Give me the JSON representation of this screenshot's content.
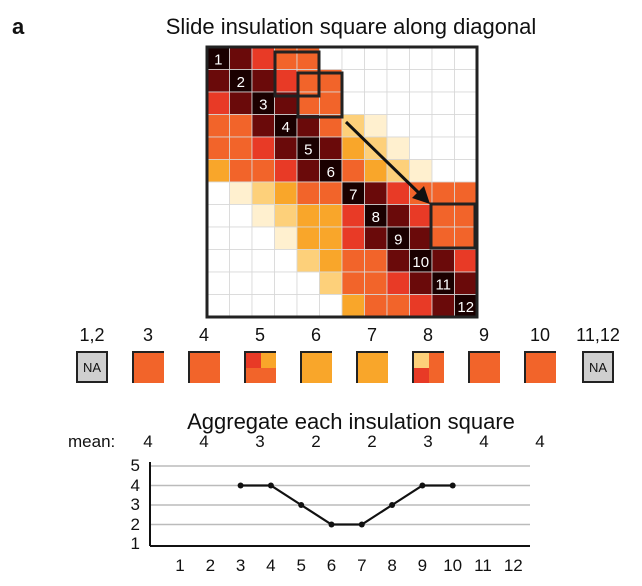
{
  "panel_label": "a",
  "main_title": "Slide insulation square along diagonal",
  "diagonal_numbers": [
    "1",
    "2",
    "3",
    "4",
    "5",
    "6",
    "7",
    "8",
    "9",
    "10",
    "11",
    "12"
  ],
  "heatmap_rows": [
    [
      0,
      1,
      2,
      3,
      3,
      0,
      0,
      0,
      0,
      0,
      0,
      0
    ],
    [
      1,
      0,
      1,
      2,
      3,
      3,
      0,
      0,
      0,
      0,
      0,
      0
    ],
    [
      2,
      1,
      0,
      1,
      3,
      3,
      0,
      0,
      0,
      0,
      0,
      0
    ],
    [
      3,
      3,
      1,
      0,
      1,
      3,
      5,
      6,
      0,
      0,
      0,
      0
    ],
    [
      3,
      3,
      2,
      1,
      0,
      1,
      4,
      5,
      6,
      0,
      0,
      0
    ],
    [
      4,
      3,
      3,
      2,
      1,
      0,
      3,
      4,
      5,
      6,
      0,
      0
    ],
    [
      0,
      6,
      5,
      4,
      3,
      3,
      0,
      1,
      2,
      3,
      3,
      3
    ],
    [
      0,
      0,
      6,
      5,
      4,
      4,
      2,
      0,
      1,
      2,
      3,
      3
    ],
    [
      0,
      0,
      0,
      6,
      4,
      4,
      2,
      1,
      0,
      1,
      3,
      3
    ],
    [
      0,
      0,
      0,
      0,
      5,
      4,
      3,
      3,
      1,
      0,
      1,
      2
    ],
    [
      0,
      0,
      0,
      0,
      0,
      5,
      3,
      3,
      2,
      1,
      0,
      1
    ],
    [
      0,
      0,
      0,
      0,
      0,
      0,
      4,
      3,
      3,
      2,
      1,
      0
    ]
  ],
  "palette": [
    "#1a0000",
    "#6a0a0a",
    "#e83a26",
    "#f2642a",
    "#f9a62a",
    "#fdd07a",
    "#fff0cf"
  ],
  "square_labels": [
    "1,2",
    "3",
    "4",
    "5",
    "6",
    "7",
    "8",
    "9",
    "10",
    "11,12"
  ],
  "squares": [
    {
      "type": "na",
      "text": "NA"
    },
    {
      "type": "q",
      "q": [
        3,
        3,
        3,
        3
      ]
    },
    {
      "type": "q",
      "q": [
        3,
        3,
        3,
        3
      ]
    },
    {
      "type": "q",
      "q": [
        2,
        4,
        3,
        3
      ]
    },
    {
      "type": "q",
      "q": [
        4,
        4,
        4,
        4
      ]
    },
    {
      "type": "q",
      "q": [
        4,
        4,
        4,
        4
      ]
    },
    {
      "type": "q",
      "q": [
        5,
        3,
        2,
        3
      ]
    },
    {
      "type": "q",
      "q": [
        3,
        3,
        3,
        3
      ]
    },
    {
      "type": "q",
      "q": [
        3,
        3,
        3,
        3
      ]
    },
    {
      "type": "na",
      "text": "NA"
    }
  ],
  "agg_title": "Aggregate each insulation square",
  "mean_label": "mean:",
  "means": [
    "4",
    "4",
    "3",
    "2",
    "2",
    "3",
    "4",
    "4"
  ],
  "chart_data": {
    "type": "line",
    "x": [
      3,
      4,
      5,
      6,
      7,
      8,
      9,
      10
    ],
    "values": [
      4,
      4,
      3,
      2,
      2,
      3,
      4,
      4
    ],
    "x_ticks": [
      "1",
      "2",
      "3",
      "4",
      "5",
      "6",
      "7",
      "8",
      "9",
      "10",
      "11",
      "12"
    ],
    "y_ticks": [
      "5",
      "4",
      "3",
      "2",
      "1"
    ],
    "ylim": [
      1,
      5
    ],
    "xlim": [
      1,
      12
    ],
    "grid": true
  }
}
